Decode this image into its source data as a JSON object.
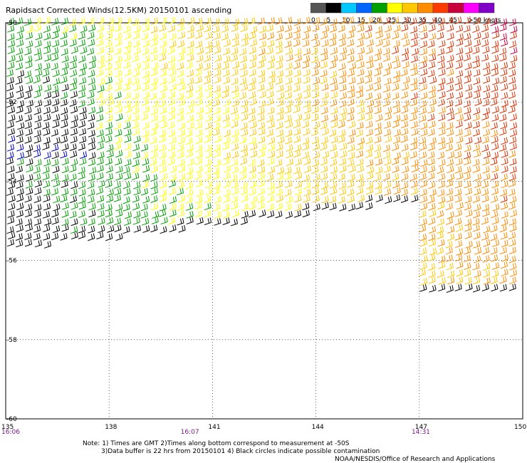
{
  "title": "Rapidsact Corrected Winds(12.5KM) 20150101 ascending",
  "legend": {
    "labels": [
      "0",
      "5",
      "10",
      "15",
      "20",
      "25",
      "30",
      "35",
      "40",
      "45",
      ">50 knots"
    ],
    "colors": [
      "#555555",
      "#000000",
      "#00c8ff",
      "#0064ff",
      "#00a000",
      "#ffff00",
      "#ffc800",
      "#ff8c00",
      "#ff3c00",
      "#c8003c",
      "#ff00ff",
      "#8000c8"
    ]
  },
  "axes": {
    "lat_ticks": [
      "-50",
      "-52",
      "-54",
      "-56",
      "-58",
      "-60"
    ],
    "lon_ticks": [
      "135",
      "138",
      "141",
      "144",
      "147",
      "150"
    ]
  },
  "times": [
    "16:06",
    "16:07",
    "14:31"
  ],
  "notes": {
    "line1": "Note: 1) Times are GMT 2)Times along bottom correspond to measurement at -50S",
    "line2": "3)Data buffer is 22 hrs from 20150101 4) Black circles indicate possible contamination",
    "credit": "NOAA/NESDIS/Office of Research and Applications"
  },
  "map_data": {
    "lon_range": [
      135,
      150
    ],
    "lat_range": [
      -60,
      -50
    ],
    "swath_edge_lat_at_lon135": -55.8,
    "swath_edge_lat_at_lon150": -54.3,
    "swath2_lon_start": 146.9,
    "swath2_south_lat": -56.9,
    "palette_by_speed": {
      "10": "#0000c8",
      "15": "#000000",
      "20": "#00a000",
      "25": "#ffff00",
      "30": "#ffc800",
      "35": "#ff8c00",
      "40": "#e03000",
      "45": "#c8003c"
    },
    "wind_direction": "west-southwest",
    "flag_color": "#000000"
  }
}
